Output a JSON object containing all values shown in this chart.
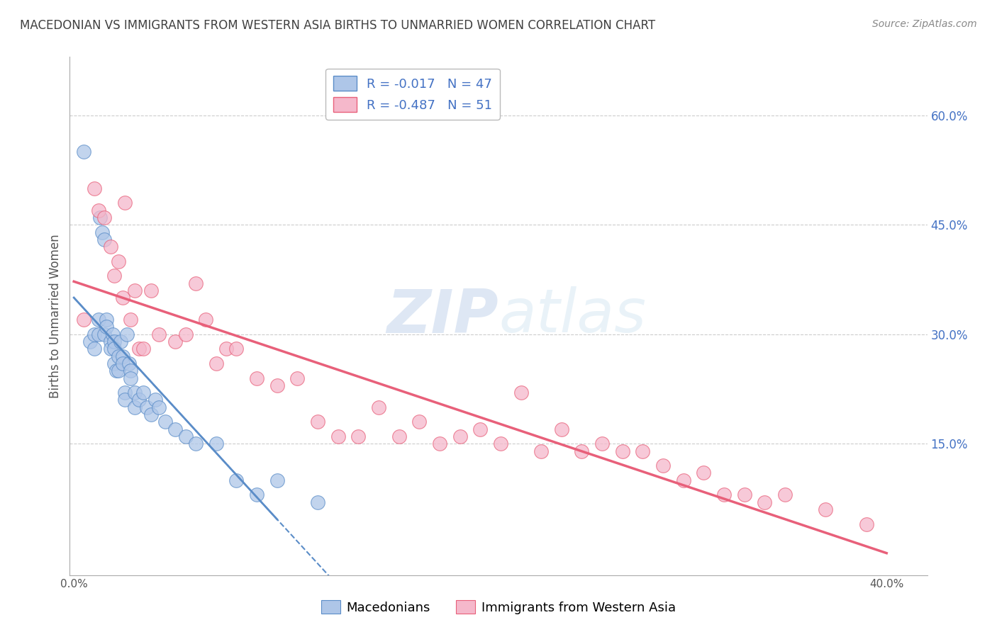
{
  "title": "MACEDONIAN VS IMMIGRANTS FROM WESTERN ASIA BIRTHS TO UNMARRIED WOMEN CORRELATION CHART",
  "source": "Source: ZipAtlas.com",
  "ylabel": "Births to Unmarried Women",
  "legend_labels": [
    "Macedonians",
    "Immigrants from Western Asia"
  ],
  "legend_r": [
    -0.017,
    -0.487
  ],
  "legend_n": [
    47,
    51
  ],
  "blue_color": "#aec6e8",
  "pink_color": "#f5b8cb",
  "blue_line_color": "#5b8dc8",
  "pink_line_color": "#e8607a",
  "title_color": "#404040",
  "axis_label_color": "#4472c4",
  "right_axis_color": "#4472c4",
  "watermark_zip": "ZIP",
  "watermark_atlas": "atlas",
  "y_ticks_right": [
    0.6,
    0.45,
    0.3,
    0.15
  ],
  "y_tick_labels_right": [
    "60.0%",
    "45.0%",
    "30.0%",
    "15.0%"
  ],
  "xlim": [
    -0.002,
    0.42
  ],
  "ylim": [
    -0.03,
    0.68
  ],
  "blue_x": [
    0.005,
    0.008,
    0.01,
    0.01,
    0.012,
    0.012,
    0.013,
    0.014,
    0.015,
    0.015,
    0.016,
    0.016,
    0.018,
    0.018,
    0.019,
    0.02,
    0.02,
    0.02,
    0.021,
    0.022,
    0.022,
    0.023,
    0.024,
    0.024,
    0.025,
    0.025,
    0.026,
    0.027,
    0.028,
    0.028,
    0.03,
    0.03,
    0.032,
    0.034,
    0.036,
    0.038,
    0.04,
    0.042,
    0.045,
    0.05,
    0.055,
    0.06,
    0.07,
    0.08,
    0.09,
    0.1,
    0.12
  ],
  "blue_y": [
    0.55,
    0.29,
    0.28,
    0.3,
    0.3,
    0.32,
    0.46,
    0.44,
    0.43,
    0.3,
    0.32,
    0.31,
    0.29,
    0.28,
    0.3,
    0.29,
    0.28,
    0.26,
    0.25,
    0.27,
    0.25,
    0.29,
    0.27,
    0.26,
    0.22,
    0.21,
    0.3,
    0.26,
    0.25,
    0.24,
    0.2,
    0.22,
    0.21,
    0.22,
    0.2,
    0.19,
    0.21,
    0.2,
    0.18,
    0.17,
    0.16,
    0.15,
    0.15,
    0.1,
    0.08,
    0.1,
    0.07
  ],
  "pink_x": [
    0.005,
    0.01,
    0.012,
    0.015,
    0.018,
    0.02,
    0.022,
    0.024,
    0.025,
    0.028,
    0.03,
    0.032,
    0.034,
    0.038,
    0.042,
    0.05,
    0.055,
    0.06,
    0.065,
    0.07,
    0.075,
    0.08,
    0.09,
    0.1,
    0.11,
    0.12,
    0.13,
    0.14,
    0.15,
    0.16,
    0.17,
    0.18,
    0.19,
    0.2,
    0.21,
    0.22,
    0.23,
    0.24,
    0.25,
    0.26,
    0.27,
    0.28,
    0.29,
    0.3,
    0.31,
    0.32,
    0.33,
    0.34,
    0.35,
    0.37,
    0.39
  ],
  "pink_y": [
    0.32,
    0.5,
    0.47,
    0.46,
    0.42,
    0.38,
    0.4,
    0.35,
    0.48,
    0.32,
    0.36,
    0.28,
    0.28,
    0.36,
    0.3,
    0.29,
    0.3,
    0.37,
    0.32,
    0.26,
    0.28,
    0.28,
    0.24,
    0.23,
    0.24,
    0.18,
    0.16,
    0.16,
    0.2,
    0.16,
    0.18,
    0.15,
    0.16,
    0.17,
    0.15,
    0.22,
    0.14,
    0.17,
    0.14,
    0.15,
    0.14,
    0.14,
    0.12,
    0.1,
    0.11,
    0.08,
    0.08,
    0.07,
    0.08,
    0.06,
    0.04
  ]
}
